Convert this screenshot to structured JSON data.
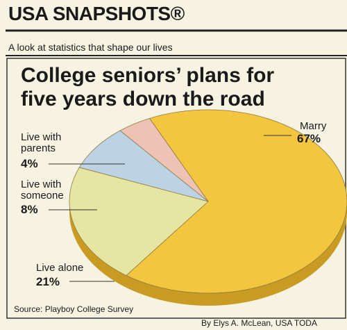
{
  "chart_data": {
    "type": "pie",
    "banner": "USA SNAPSHOTS®",
    "tagline": "A look at statistics that shape our lives",
    "title": "College seniors’ plans for five years down the road",
    "categories": [
      "Marry",
      "Live alone",
      "Live with someone",
      "Live with parents"
    ],
    "values": [
      67,
      21,
      8,
      4
    ],
    "value_labels": [
      "67%",
      "21%",
      "8%",
      "4%"
    ],
    "colors": [
      "#f4c640",
      "#e6e6a2",
      "#bcd3e6",
      "#eec3b6"
    ],
    "source": "Source: Playboy College Survey",
    "credit": "By Elys A. McLean, USA TODA"
  }
}
